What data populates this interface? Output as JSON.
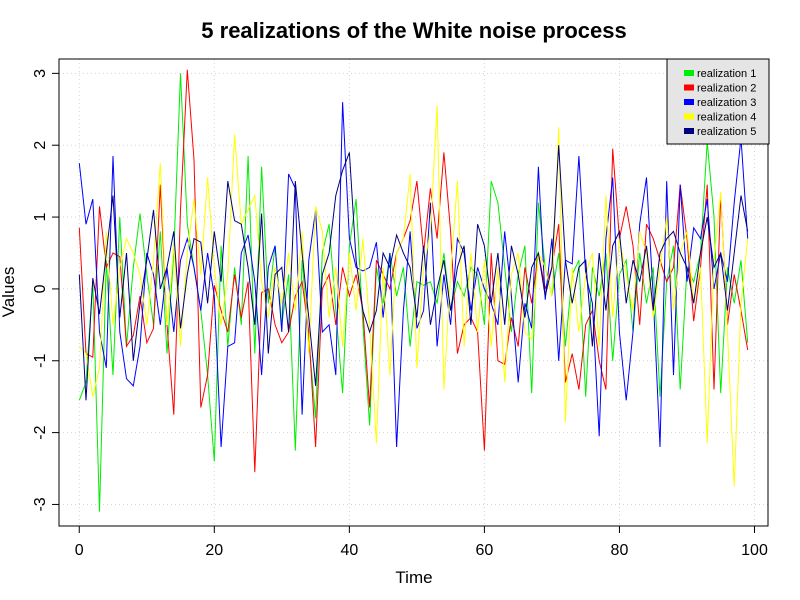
{
  "chart_data": {
    "type": "line",
    "title": "5 realizations of the White noise process",
    "xlabel": "Time",
    "ylabel": "Values",
    "xlim": [
      -3,
      102
    ],
    "ylim": [
      -3.3,
      3.2
    ],
    "x_ticks": [
      0,
      20,
      40,
      60,
      80,
      100
    ],
    "y_ticks": [
      -3,
      -2,
      -1,
      0,
      1,
      2,
      3
    ],
    "grid": true,
    "legend_position": "top-right",
    "x": [
      0,
      1,
      2,
      3,
      4,
      5,
      6,
      7,
      8,
      9,
      10,
      11,
      12,
      13,
      14,
      15,
      16,
      17,
      18,
      19,
      20,
      21,
      22,
      23,
      24,
      25,
      26,
      27,
      28,
      29,
      30,
      31,
      32,
      33,
      34,
      35,
      36,
      37,
      38,
      39,
      40,
      41,
      42,
      43,
      44,
      45,
      46,
      47,
      48,
      49,
      50,
      51,
      52,
      53,
      54,
      55,
      56,
      57,
      58,
      59,
      60,
      61,
      62,
      63,
      64,
      65,
      66,
      67,
      68,
      69,
      70,
      71,
      72,
      73,
      74,
      75,
      76,
      77,
      78,
      79,
      80,
      81,
      82,
      83,
      84,
      85,
      86,
      87,
      88,
      89,
      90,
      91,
      92,
      93,
      94,
      95,
      96,
      97,
      98,
      99
    ],
    "series": [
      {
        "name": "realization 1",
        "color": "#00ee00",
        "values": [
          -1.55,
          -1.3,
          0.1,
          -3.1,
          0.4,
          -1.2,
          1.0,
          -0.8,
          0.3,
          1.05,
          0.2,
          -0.5,
          0.8,
          -0.9,
          0.5,
          3.0,
          0.9,
          0.3,
          -0.3,
          -1.2,
          -2.4,
          0.6,
          -0.8,
          0.3,
          -0.5,
          1.85,
          -0.9,
          1.7,
          -0.2,
          0.6,
          -0.5,
          0.2,
          -2.25,
          0.4,
          -0.7,
          -1.8,
          0.5,
          0.9,
          -0.3,
          -1.45,
          0.6,
          1.25,
          -0.5,
          -1.9,
          0.3,
          -0.2,
          0.5,
          -0.1,
          0.3,
          -0.8,
          0.1,
          0.05,
          0.1,
          -0.2,
          0.5,
          -0.3,
          0.1,
          -0.1,
          0.3,
          0.2,
          -0.5,
          1.5,
          1.2,
          0.3,
          -0.6,
          0.2,
          0.6,
          -1.45,
          1.2,
          0.3,
          -0.1,
          0.5,
          -0.8,
          0.2,
          0.4,
          -1.5,
          0.3,
          -0.1,
          0.5,
          -1.0,
          0.2,
          0.4,
          -0.6,
          0.5,
          -0.2,
          0.3,
          -1.5,
          0.1,
          0.6,
          -1.4,
          0.3,
          0.1,
          0.5,
          2.05,
          1.0,
          -1.45,
          0.3,
          -0.2,
          0.4,
          -0.75
        ]
      },
      {
        "name": "realization 2",
        "color": "#ff0000",
        "values": [
          0.85,
          -0.9,
          -0.95,
          1.15,
          0.3,
          0.5,
          0.45,
          -0.8,
          -0.65,
          -0.1,
          -0.75,
          -0.55,
          1.45,
          -0.5,
          -1.75,
          1.1,
          3.05,
          1.8,
          -1.65,
          -1.2,
          0.05,
          -0.3,
          -0.6,
          0.2,
          -0.4,
          0.1,
          -2.55,
          -0.05,
          0.0,
          -0.5,
          -0.75,
          -0.6,
          -0.1,
          0.1,
          -0.6,
          -2.2,
          0.0,
          0.2,
          -0.5,
          0.3,
          -0.1,
          0.2,
          -0.3,
          -1.65,
          0.4,
          0.2,
          0.0,
          0.5,
          0.7,
          0.95,
          1.5,
          0.5,
          1.4,
          0.7,
          1.9,
          0.8,
          -0.9,
          -0.5,
          -0.4,
          -0.6,
          -2.25,
          0.5,
          -1.0,
          -1.05,
          -0.4,
          -0.8,
          0.3,
          -0.2,
          0.5,
          0.0,
          0.3,
          0.9,
          -1.3,
          -0.9,
          -1.4,
          -0.5,
          -0.3,
          -1.0,
          -1.4,
          1.95,
          0.7,
          1.15,
          0.6,
          -0.5,
          0.9,
          0.7,
          0.4,
          0.1,
          0.3,
          1.45,
          0.7,
          -0.45,
          0.3,
          1.45,
          -1.4,
          1.3,
          -0.5,
          0.2,
          -0.3,
          -0.85
        ]
      },
      {
        "name": "realization 3",
        "color": "#0000ff",
        "values": [
          1.75,
          0.9,
          1.25,
          -0.6,
          -1.1,
          1.85,
          -0.6,
          -1.25,
          -1.35,
          -0.8,
          0.5,
          0.2,
          -0.5,
          0.3,
          -0.6,
          0.4,
          0.7,
          0.3,
          -0.3,
          0.5,
          -0.1,
          -2.2,
          -0.8,
          -0.75,
          0.5,
          0.75,
          0.1,
          -1.2,
          0.3,
          0.6,
          -0.6,
          1.6,
          1.4,
          -1.75,
          0.4,
          1.1,
          -0.6,
          -0.5,
          -1.2,
          2.6,
          0.7,
          0.3,
          0.25,
          0.3,
          0.65,
          -0.4,
          0.5,
          -2.2,
          -0.3,
          0.8,
          -0.55,
          -0.3,
          1.2,
          -0.8,
          0.2,
          -0.5,
          0.7,
          0.5,
          -0.3,
          0.3,
          0.0,
          -0.2,
          -0.5,
          0.8,
          -0.1,
          -1.3,
          -0.2,
          -0.55,
          1.7,
          -0.15,
          0.7,
          -1.0,
          0.4,
          0.35,
          1.85,
          0.2,
          -0.2,
          -2.05,
          0.7,
          1.55,
          -0.6,
          -1.55,
          -0.6,
          0.9,
          1.55,
          -0.1,
          -2.2,
          1.5,
          -1.2,
          1.45,
          0.1,
          0.85,
          0.7,
          1.25,
          0.0,
          0.5,
          0.1,
          1.2,
          2.1,
          0.7
        ]
      },
      {
        "name": "realization 4",
        "color": "#ffff00",
        "values": [
          -0.8,
          -0.9,
          -1.5,
          -1.1,
          0.8,
          -0.5,
          0.3,
          0.7,
          0.5,
          0.2,
          -0.5,
          0.4,
          1.75,
          -0.5,
          0.6,
          -0.8,
          0.5,
          1.25,
          0.2,
          1.55,
          0.3,
          -0.5,
          0.2,
          2.15,
          0.9,
          1.1,
          1.3,
          0.1,
          -0.4,
          0.3,
          -0.2,
          0.5,
          -0.3,
          0.8,
          -0.9,
          1.15,
          0.8,
          -0.4,
          0.3,
          -0.8,
          0.5,
          -0.3,
          0.7,
          -0.5,
          -2.15,
          0.3,
          -1.2,
          0.5,
          0.7,
          1.6,
          -1.1,
          0.3,
          0.8,
          2.55,
          -1.4,
          0.2,
          1.5,
          -0.8,
          0.5,
          -0.6,
          0.4,
          -0.8,
          0.3,
          -1.3,
          0.2,
          0.5,
          -0.6,
          -0.7,
          0.5,
          0.3,
          -0.1,
          2.25,
          -1.85,
          0.3,
          -0.6,
          0.2,
          0.5,
          -0.8,
          1.3,
          -0.4,
          0.7,
          0.2,
          -0.3,
          0.8,
          0.5,
          -0.4,
          0.3,
          1.0,
          -0.3,
          0.5,
          0.8,
          -0.2,
          0.3,
          -2.15,
          0.4,
          1.35,
          -0.6,
          -2.75,
          -0.2,
          0.7
        ]
      },
      {
        "name": "realization 5",
        "color": "#000080",
        "values": [
          0.2,
          -1.55,
          0.15,
          -0.35,
          0.5,
          1.3,
          -0.4,
          0.5,
          -1.0,
          -0.2,
          0.4,
          1.1,
          0.0,
          0.3,
          0.8,
          -0.55,
          0.2,
          0.7,
          0.65,
          -0.2,
          0.8,
          0.1,
          1.5,
          0.95,
          0.9,
          0.3,
          -0.5,
          1.05,
          -0.9,
          0.2,
          0.3,
          -0.6,
          1.5,
          0.5,
          -0.4,
          -1.35,
          0.2,
          0.5,
          1.3,
          1.65,
          1.9,
          0.4,
          -0.3,
          -0.6,
          -0.3,
          0.5,
          0.3,
          0.75,
          0.5,
          0.3,
          -0.4,
          0.6,
          -0.5,
          0.0,
          0.4,
          -0.3,
          0.3,
          0.6,
          -0.5,
          0.9,
          0.6,
          -0.2,
          0.5,
          -0.5,
          0.6,
          0.2,
          -0.4,
          0.3,
          0.5,
          -0.1,
          0.3,
          2.0,
          0.4,
          -0.2,
          0.3,
          0.4,
          -0.8,
          0.5,
          -0.3,
          0.6,
          0.8,
          -0.2,
          0.4,
          0.1,
          0.6,
          -0.3,
          0.5,
          0.7,
          0.8,
          0.5,
          0.3,
          -0.2,
          0.5,
          1.0,
          0.3,
          0.5,
          -0.3,
          0.5,
          1.3,
          0.8
        ]
      }
    ]
  }
}
